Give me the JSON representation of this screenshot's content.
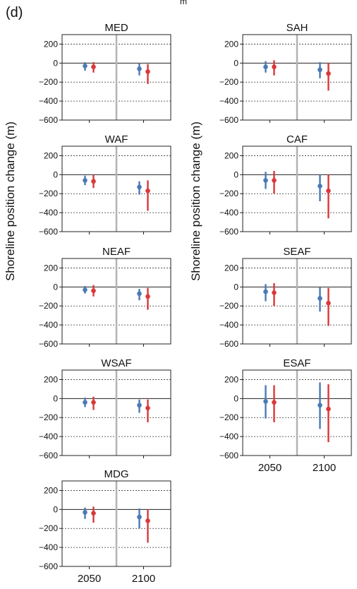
{
  "figure": {
    "panel_label": "(d)",
    "top_fragment": "m",
    "ylabel": "Shoreline position change (m)",
    "colors": {
      "blue": "#4a7ab5",
      "red": "#d9383a",
      "divider": "#b3b3b3"
    }
  },
  "chart_data": [
    {
      "type": "errorbar",
      "title": "MED",
      "categories": [
        "2050",
        "2100"
      ],
      "yticks": [
        200,
        0,
        -200,
        -400,
        -600
      ],
      "ylim": [
        -600,
        300
      ],
      "series": [
        {
          "color": "blue",
          "values": [
            -30,
            -60
          ],
          "low": [
            -80,
            -130
          ],
          "high": [
            10,
            0
          ]
        },
        {
          "color": "red",
          "values": [
            -40,
            -90
          ],
          "low": [
            -100,
            -220
          ],
          "high": [
            10,
            -10
          ]
        }
      ]
    },
    {
      "type": "errorbar",
      "title": "SAH",
      "categories": [
        "2050",
        "2100"
      ],
      "yticks": [
        200,
        0,
        -200,
        -400,
        -600
      ],
      "ylim": [
        -600,
        300
      ],
      "series": [
        {
          "color": "blue",
          "values": [
            -40,
            -70
          ],
          "low": [
            -100,
            -160
          ],
          "high": [
            20,
            10
          ]
        },
        {
          "color": "red",
          "values": [
            -40,
            -110
          ],
          "low": [
            -130,
            -290
          ],
          "high": [
            30,
            0
          ]
        }
      ]
    },
    {
      "type": "errorbar",
      "title": "WAF",
      "categories": [
        "2050",
        "2100"
      ],
      "yticks": [
        200,
        0,
        -200,
        -400,
        -600
      ],
      "ylim": [
        -600,
        300
      ],
      "series": [
        {
          "color": "blue",
          "values": [
            -60,
            -130
          ],
          "low": [
            -110,
            -210
          ],
          "high": [
            -10,
            -70
          ]
        },
        {
          "color": "red",
          "values": [
            -70,
            -170
          ],
          "low": [
            -140,
            -380
          ],
          "high": [
            0,
            -60
          ]
        }
      ]
    },
    {
      "type": "errorbar",
      "title": "CAF",
      "categories": [
        "2050",
        "2100"
      ],
      "yticks": [
        200,
        0,
        -200,
        -400,
        -600
      ],
      "ylim": [
        -600,
        300
      ],
      "series": [
        {
          "color": "blue",
          "values": [
            -60,
            -120
          ],
          "low": [
            -150,
            -280
          ],
          "high": [
            30,
            0
          ]
        },
        {
          "color": "red",
          "values": [
            -60,
            -170
          ],
          "low": [
            -200,
            -460
          ],
          "high": [
            40,
            0
          ]
        }
      ]
    },
    {
      "type": "errorbar",
      "title": "NEAF",
      "categories": [
        "2050",
        "2100"
      ],
      "yticks": [
        200,
        0,
        -200,
        -400,
        -600
      ],
      "ylim": [
        -600,
        300
      ],
      "series": [
        {
          "color": "blue",
          "values": [
            -30,
            -70
          ],
          "low": [
            -70,
            -140
          ],
          "high": [
            10,
            -20
          ]
        },
        {
          "color": "red",
          "values": [
            -40,
            -100
          ],
          "low": [
            -100,
            -240
          ],
          "high": [
            20,
            -10
          ]
        }
      ]
    },
    {
      "type": "errorbar",
      "title": "SEAF",
      "categories": [
        "2050",
        "2100"
      ],
      "yticks": [
        200,
        0,
        -200,
        -400,
        -600
      ],
      "ylim": [
        -600,
        300
      ],
      "series": [
        {
          "color": "blue",
          "values": [
            -50,
            -120
          ],
          "low": [
            -150,
            -260
          ],
          "high": [
            30,
            0
          ]
        },
        {
          "color": "red",
          "values": [
            -60,
            -170
          ],
          "low": [
            -200,
            -410
          ],
          "high": [
            40,
            -10
          ]
        }
      ]
    },
    {
      "type": "errorbar",
      "title": "WSAF",
      "categories": [
        "2050",
        "2100"
      ],
      "yticks": [
        200,
        0,
        -200,
        -400,
        -600
      ],
      "ylim": [
        -600,
        300
      ],
      "series": [
        {
          "color": "blue",
          "values": [
            -40,
            -70
          ],
          "low": [
            -90,
            -150
          ],
          "high": [
            10,
            -10
          ]
        },
        {
          "color": "red",
          "values": [
            -40,
            -100
          ],
          "low": [
            -120,
            -250
          ],
          "high": [
            20,
            -10
          ]
        }
      ]
    },
    {
      "type": "errorbar",
      "title": "ESAF",
      "categories": [
        "2050",
        "2100"
      ],
      "yticks": [
        200,
        0,
        -200,
        -400,
        -600
      ],
      "ylim": [
        -600,
        300
      ],
      "series": [
        {
          "color": "blue",
          "values": [
            -30,
            -70
          ],
          "low": [
            -210,
            -320
          ],
          "high": [
            140,
            170
          ]
        },
        {
          "color": "red",
          "values": [
            -40,
            -110
          ],
          "low": [
            -250,
            -460
          ],
          "high": [
            140,
            150
          ]
        }
      ]
    },
    {
      "type": "errorbar",
      "title": "MDG",
      "categories": [
        "2050",
        "2100"
      ],
      "yticks": [
        200,
        0,
        -200,
        -400,
        -600
      ],
      "ylim": [
        -600,
        300
      ],
      "series": [
        {
          "color": "blue",
          "values": [
            -30,
            -80
          ],
          "low": [
            -100,
            -200
          ],
          "high": [
            20,
            10
          ]
        },
        {
          "color": "red",
          "values": [
            -40,
            -120
          ],
          "low": [
            -140,
            -350
          ],
          "high": [
            30,
            0
          ]
        }
      ]
    }
  ]
}
